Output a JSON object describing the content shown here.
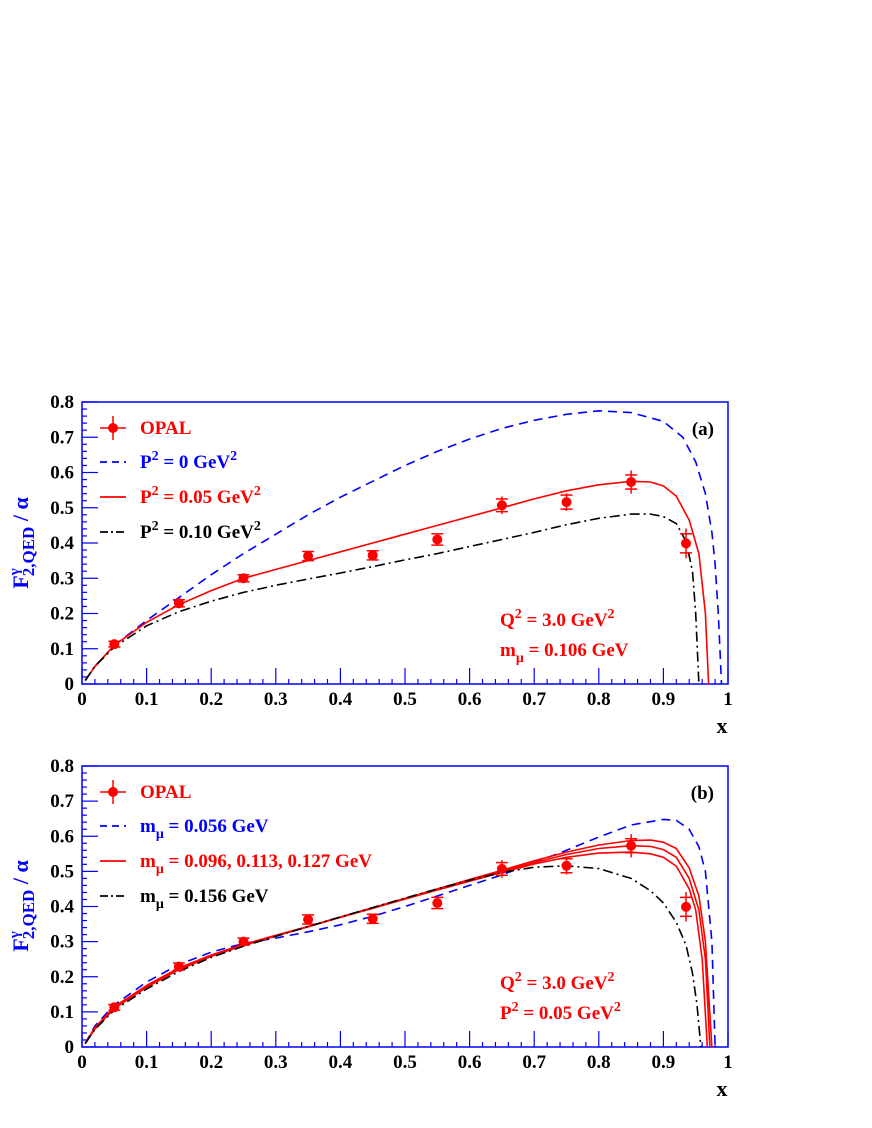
{
  "colors": {
    "axis": "#0000ff",
    "opal": "#ff0000",
    "blue_series": "#0000ff",
    "red_series": "#ff0000",
    "black_series": "#000000"
  },
  "chart_data": [
    {
      "type": "line",
      "panel_label": "(a)",
      "xlabel": "x",
      "ylabel": "F₂,QED^γ / α",
      "xlim": [
        0,
        1
      ],
      "ylim": [
        0,
        0.8
      ],
      "xticks": [
        "0",
        "0.1",
        "0.2",
        "0.3",
        "0.4",
        "0.5",
        "0.6",
        "0.7",
        "0.8",
        "0.9",
        "1"
      ],
      "yticks": [
        "0",
        "0.1",
        "0.2",
        "0.3",
        "0.4",
        "0.5",
        "0.6",
        "0.7",
        "0.8"
      ],
      "legend": [
        {
          "label": "OPAL",
          "marker": "point",
          "color": "#ff0000"
        },
        {
          "label": "P² =    0 GeV²",
          "line": "dashed",
          "color": "#0000ff"
        },
        {
          "label": "P² = 0.05 GeV²",
          "line": "solid",
          "color": "#ff0000"
        },
        {
          "label": "P² = 0.10 GeV²",
          "line": "dashdot",
          "color": "#000000"
        }
      ],
      "annotations": [
        "Q² = 3.0 GeV²",
        "mμ = 0.106 GeV"
      ],
      "data_points": {
        "name": "OPAL",
        "x": [
          0.05,
          0.15,
          0.25,
          0.35,
          0.45,
          0.55,
          0.65,
          0.75,
          0.85,
          0.935
        ],
        "y": [
          0.113,
          0.229,
          0.3,
          0.363,
          0.365,
          0.41,
          0.507,
          0.516,
          0.573,
          0.399
        ],
        "err_stat": [
          0.008,
          0.01,
          0.01,
          0.013,
          0.013,
          0.016,
          0.018,
          0.02,
          0.02,
          0.027
        ],
        "err_tot": [
          0.008,
          0.01,
          0.01,
          0.013,
          0.013,
          0.016,
          0.025,
          0.025,
          0.033,
          0.042
        ]
      },
      "series": [
        {
          "label": "P² =    0 GeV²",
          "style": "dashed",
          "color": "#0000ff",
          "x": [
            0.005,
            0.02,
            0.05,
            0.1,
            0.15,
            0.2,
            0.25,
            0.3,
            0.35,
            0.4,
            0.45,
            0.5,
            0.55,
            0.6,
            0.65,
            0.7,
            0.75,
            0.8,
            0.85,
            0.9,
            0.93,
            0.95,
            0.965,
            0.975,
            0.98,
            0.985,
            0.99
          ],
          "y": [
            0.01,
            0.05,
            0.11,
            0.18,
            0.245,
            0.31,
            0.37,
            0.425,
            0.48,
            0.53,
            0.575,
            0.62,
            0.66,
            0.695,
            0.725,
            0.748,
            0.765,
            0.775,
            0.77,
            0.745,
            0.7,
            0.63,
            0.54,
            0.43,
            0.34,
            0.2,
            0
          ]
        },
        {
          "label": "P² = 0.05 GeV²",
          "style": "solid",
          "color": "#ff0000",
          "x": [
            0.005,
            0.02,
            0.05,
            0.1,
            0.15,
            0.2,
            0.25,
            0.3,
            0.35,
            0.4,
            0.45,
            0.5,
            0.55,
            0.6,
            0.65,
            0.7,
            0.75,
            0.8,
            0.85,
            0.88,
            0.9,
            0.92,
            0.94,
            0.955,
            0.965,
            0.97
          ],
          "y": [
            0.01,
            0.05,
            0.11,
            0.175,
            0.225,
            0.265,
            0.3,
            0.325,
            0.35,
            0.375,
            0.4,
            0.425,
            0.45,
            0.475,
            0.5,
            0.525,
            0.548,
            0.565,
            0.575,
            0.573,
            0.562,
            0.533,
            0.465,
            0.37,
            0.2,
            0
          ]
        },
        {
          "label": "P² = 0.10 GeV²",
          "style": "dashdot",
          "color": "#000000",
          "x": [
            0.005,
            0.02,
            0.05,
            0.1,
            0.15,
            0.2,
            0.25,
            0.3,
            0.35,
            0.4,
            0.45,
            0.5,
            0.55,
            0.6,
            0.65,
            0.7,
            0.75,
            0.8,
            0.85,
            0.88,
            0.9,
            0.92,
            0.935,
            0.945,
            0.95,
            0.955
          ],
          "y": [
            0.01,
            0.05,
            0.105,
            0.165,
            0.205,
            0.235,
            0.26,
            0.28,
            0.298,
            0.315,
            0.333,
            0.352,
            0.37,
            0.39,
            0.41,
            0.43,
            0.452,
            0.47,
            0.482,
            0.482,
            0.475,
            0.455,
            0.405,
            0.32,
            0.2,
            0
          ]
        }
      ]
    },
    {
      "type": "line",
      "panel_label": "(b)",
      "xlabel": "x",
      "ylabel": "F₂,QED^γ / α",
      "xlim": [
        0,
        1
      ],
      "ylim": [
        0,
        0.8
      ],
      "xticks": [
        "0",
        "0.1",
        "0.2",
        "0.3",
        "0.4",
        "0.5",
        "0.6",
        "0.7",
        "0.8",
        "0.9",
        "1"
      ],
      "yticks": [
        "0",
        "0.1",
        "0.2",
        "0.3",
        "0.4",
        "0.5",
        "0.6",
        "0.7",
        "0.8"
      ],
      "legend": [
        {
          "label": "OPAL",
          "marker": "point",
          "color": "#ff0000"
        },
        {
          "label": "mμ = 0.056 GeV",
          "line": "dashed",
          "color": "#0000ff"
        },
        {
          "label": "mμ = 0.096, 0.113, 0.127 GeV",
          "line": "solid",
          "color": "#ff0000"
        },
        {
          "label": "mμ = 0.156 GeV",
          "line": "dashdot",
          "color": "#000000"
        }
      ],
      "annotations": [
        "Q² = 3.0 GeV²",
        "P² = 0.05 GeV²"
      ],
      "data_points": {
        "name": "OPAL",
        "x": [
          0.05,
          0.15,
          0.25,
          0.35,
          0.45,
          0.55,
          0.65,
          0.75,
          0.85,
          0.935
        ],
        "y": [
          0.113,
          0.229,
          0.3,
          0.363,
          0.365,
          0.41,
          0.507,
          0.516,
          0.573,
          0.399
        ],
        "err_stat": [
          0.008,
          0.01,
          0.01,
          0.013,
          0.013,
          0.016,
          0.018,
          0.02,
          0.02,
          0.027
        ],
        "err_tot": [
          0.008,
          0.01,
          0.01,
          0.013,
          0.013,
          0.016,
          0.025,
          0.025,
          0.033,
          0.042
        ]
      },
      "series": [
        {
          "label": "mμ = 0.056 GeV",
          "style": "dashed",
          "color": "#0000ff",
          "x": [
            0.005,
            0.02,
            0.05,
            0.1,
            0.15,
            0.2,
            0.25,
            0.3,
            0.35,
            0.4,
            0.45,
            0.5,
            0.55,
            0.6,
            0.65,
            0.7,
            0.75,
            0.8,
            0.85,
            0.9,
            0.92,
            0.94,
            0.955,
            0.965,
            0.975,
            0.98
          ],
          "y": [
            0.01,
            0.06,
            0.12,
            0.185,
            0.235,
            0.27,
            0.295,
            0.31,
            0.328,
            0.348,
            0.372,
            0.4,
            0.43,
            0.46,
            0.49,
            0.525,
            0.56,
            0.598,
            0.632,
            0.648,
            0.645,
            0.62,
            0.57,
            0.5,
            0.3,
            0
          ]
        },
        {
          "label": "mμ = 0.096 GeV",
          "style": "solid",
          "color": "#ff0000",
          "x": [
            0.005,
            0.02,
            0.05,
            0.1,
            0.15,
            0.2,
            0.25,
            0.3,
            0.35,
            0.4,
            0.45,
            0.5,
            0.55,
            0.6,
            0.65,
            0.7,
            0.75,
            0.8,
            0.85,
            0.88,
            0.9,
            0.92,
            0.94,
            0.955,
            0.965,
            0.975
          ],
          "y": [
            0.01,
            0.055,
            0.115,
            0.175,
            0.225,
            0.262,
            0.292,
            0.318,
            0.343,
            0.37,
            0.397,
            0.423,
            0.45,
            0.477,
            0.503,
            0.53,
            0.555,
            0.575,
            0.588,
            0.589,
            0.583,
            0.565,
            0.51,
            0.43,
            0.3,
            0
          ]
        },
        {
          "label": "mμ = 0.113 GeV",
          "style": "solid",
          "color": "#ff0000",
          "x": [
            0.005,
            0.02,
            0.05,
            0.1,
            0.15,
            0.2,
            0.25,
            0.3,
            0.35,
            0.4,
            0.45,
            0.5,
            0.55,
            0.6,
            0.65,
            0.7,
            0.75,
            0.8,
            0.85,
            0.88,
            0.9,
            0.92,
            0.94,
            0.955,
            0.965,
            0.972
          ],
          "y": [
            0.01,
            0.053,
            0.112,
            0.172,
            0.222,
            0.26,
            0.29,
            0.317,
            0.343,
            0.37,
            0.396,
            0.422,
            0.449,
            0.475,
            0.5,
            0.525,
            0.548,
            0.565,
            0.573,
            0.571,
            0.562,
            0.54,
            0.48,
            0.39,
            0.25,
            0
          ]
        },
        {
          "label": "mμ = 0.127 GeV",
          "style": "solid",
          "color": "#ff0000",
          "x": [
            0.005,
            0.02,
            0.05,
            0.1,
            0.15,
            0.2,
            0.25,
            0.3,
            0.35,
            0.4,
            0.45,
            0.5,
            0.55,
            0.6,
            0.65,
            0.7,
            0.75,
            0.8,
            0.85,
            0.88,
            0.9,
            0.92,
            0.94,
            0.95,
            0.96,
            0.968
          ],
          "y": [
            0.01,
            0.051,
            0.11,
            0.17,
            0.22,
            0.258,
            0.289,
            0.316,
            0.342,
            0.369,
            0.395,
            0.421,
            0.447,
            0.472,
            0.497,
            0.521,
            0.54,
            0.552,
            0.555,
            0.55,
            0.54,
            0.515,
            0.45,
            0.39,
            0.25,
            0
          ]
        },
        {
          "label": "mμ = 0.156 GeV",
          "style": "dashdot",
          "color": "#000000",
          "x": [
            0.005,
            0.02,
            0.05,
            0.1,
            0.15,
            0.2,
            0.25,
            0.3,
            0.35,
            0.4,
            0.45,
            0.5,
            0.55,
            0.6,
            0.65,
            0.7,
            0.75,
            0.8,
            0.85,
            0.88,
            0.9,
            0.92,
            0.935,
            0.945,
            0.952,
            0.958
          ],
          "y": [
            0.01,
            0.05,
            0.105,
            0.165,
            0.215,
            0.255,
            0.287,
            0.315,
            0.343,
            0.37,
            0.397,
            0.424,
            0.45,
            0.475,
            0.497,
            0.512,
            0.516,
            0.508,
            0.48,
            0.445,
            0.41,
            0.355,
            0.29,
            0.21,
            0.12,
            0
          ]
        }
      ]
    }
  ]
}
